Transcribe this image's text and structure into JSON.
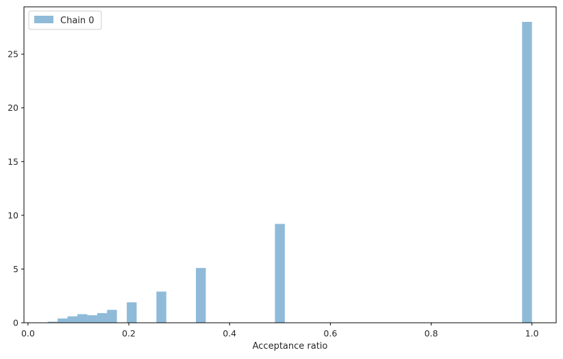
{
  "chart_data": {
    "type": "bar",
    "xlabel": "Acceptance ratio",
    "ylabel": "",
    "xlim": [
      -0.008,
      1.048
    ],
    "ylim": [
      0,
      29.4
    ],
    "xticks": [
      0.0,
      0.2,
      0.4,
      0.6,
      0.8,
      1.0
    ],
    "xtick_labels": [
      "0.0",
      "0.2",
      "0.4",
      "0.6",
      "0.8",
      "1.0"
    ],
    "yticks": [
      0,
      5,
      10,
      15,
      20,
      25
    ],
    "ytick_labels": [
      "0",
      "5",
      "10",
      "15",
      "20",
      "25"
    ],
    "grid": false,
    "legend": "upper-left",
    "series": [
      {
        "name": "Chain 0",
        "color": "#1f77b4",
        "opacity": 0.5,
        "bin_width": 0.0196,
        "bins": [
          {
            "x0": 0.0392,
            "value": 0.1
          },
          {
            "x0": 0.0588,
            "value": 0.4
          },
          {
            "x0": 0.0784,
            "value": 0.6
          },
          {
            "x0": 0.098,
            "value": 0.8
          },
          {
            "x0": 0.1176,
            "value": 0.7
          },
          {
            "x0": 0.1372,
            "value": 0.9
          },
          {
            "x0": 0.1568,
            "value": 1.2
          },
          {
            "x0": 0.196,
            "value": 1.9
          },
          {
            "x0": 0.2548,
            "value": 2.9
          },
          {
            "x0": 0.3332,
            "value": 5.1
          },
          {
            "x0": 0.49,
            "value": 9.2
          },
          {
            "x0": 0.9804,
            "value": 28.0
          }
        ]
      }
    ]
  }
}
